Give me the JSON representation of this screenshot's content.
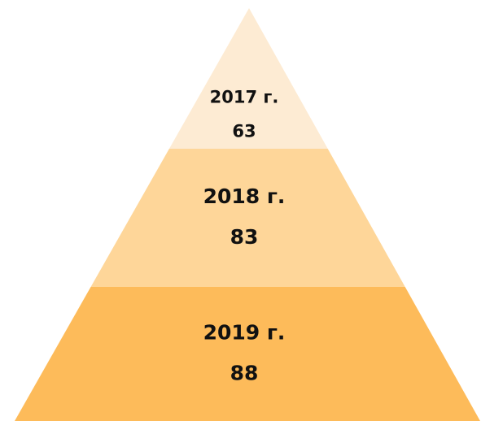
{
  "chart_data": {
    "type": "pyramid",
    "categories": [
      "2017 г.",
      "2018 г.",
      "2019 г."
    ],
    "values": [
      63,
      83,
      88
    ],
    "colors": [
      "#fdebd3",
      "#fed699",
      "#fdbb5a"
    ]
  }
}
